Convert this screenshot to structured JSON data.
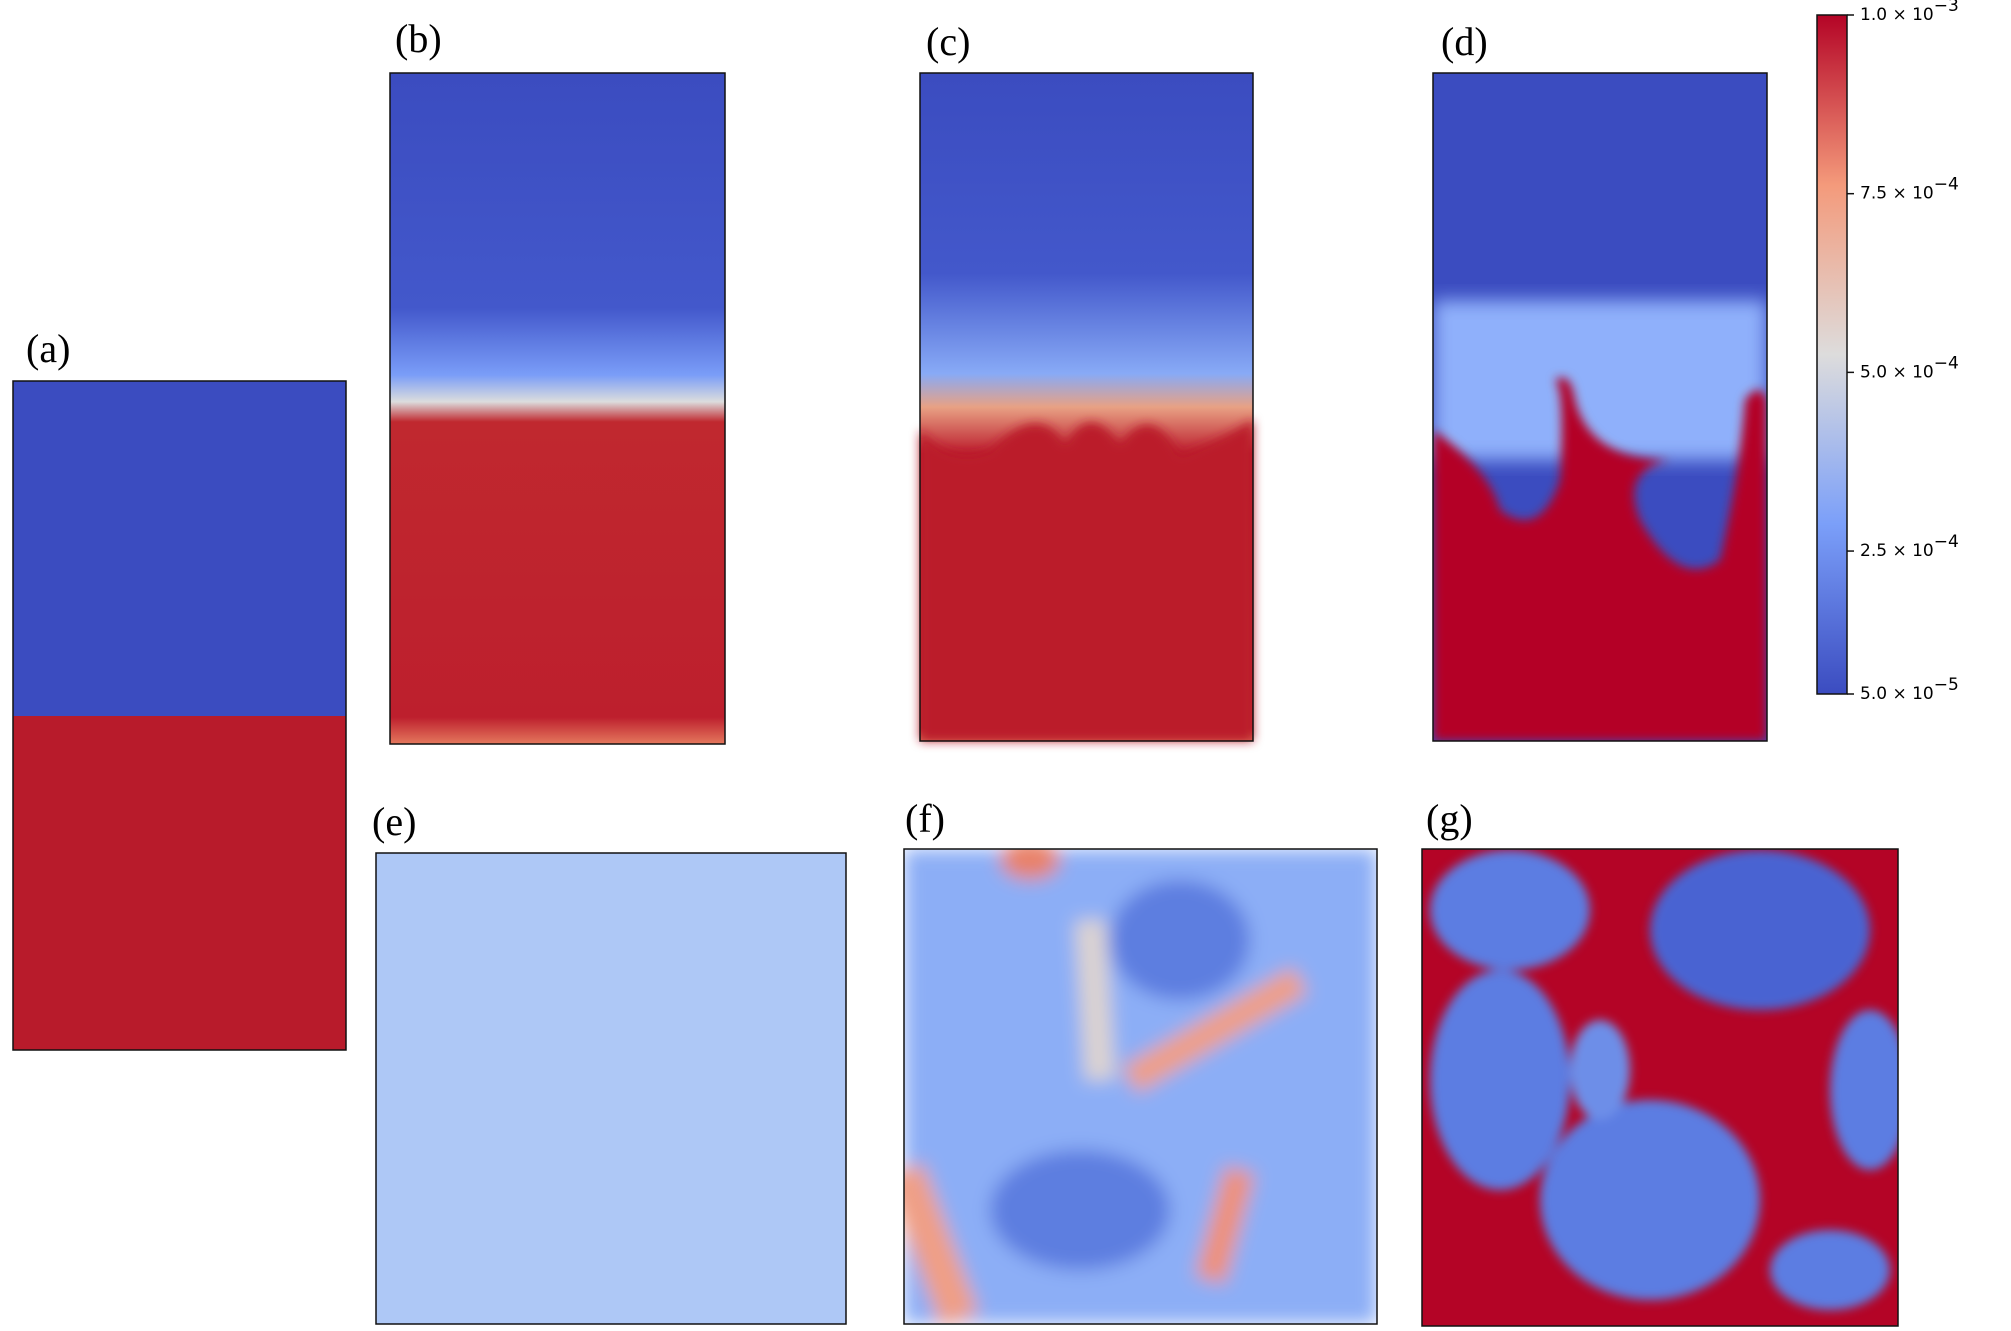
{
  "chart_data": {
    "type": "heatmap",
    "panels": [
      "(a)",
      "(b)",
      "(c)",
      "(d)",
      "(e)",
      "(f)",
      "(g)"
    ],
    "clim": [
      5e-05,
      0.001
    ],
    "cticks": [
      {
        "value": 5e-05,
        "label": "5.0 × 10",
        "exponent": "−5"
      },
      {
        "value": 0.00025,
        "label": "2.5 × 10",
        "exponent": "−4"
      },
      {
        "value": 0.0005,
        "label": "5.0 × 10",
        "exponent": "−4"
      },
      {
        "value": 0.00075,
        "label": "7.5 × 10",
        "exponent": "−4"
      },
      {
        "value": 0.001,
        "label": "1.0 × 10",
        "exponent": "−3"
      }
    ]
  }
}
